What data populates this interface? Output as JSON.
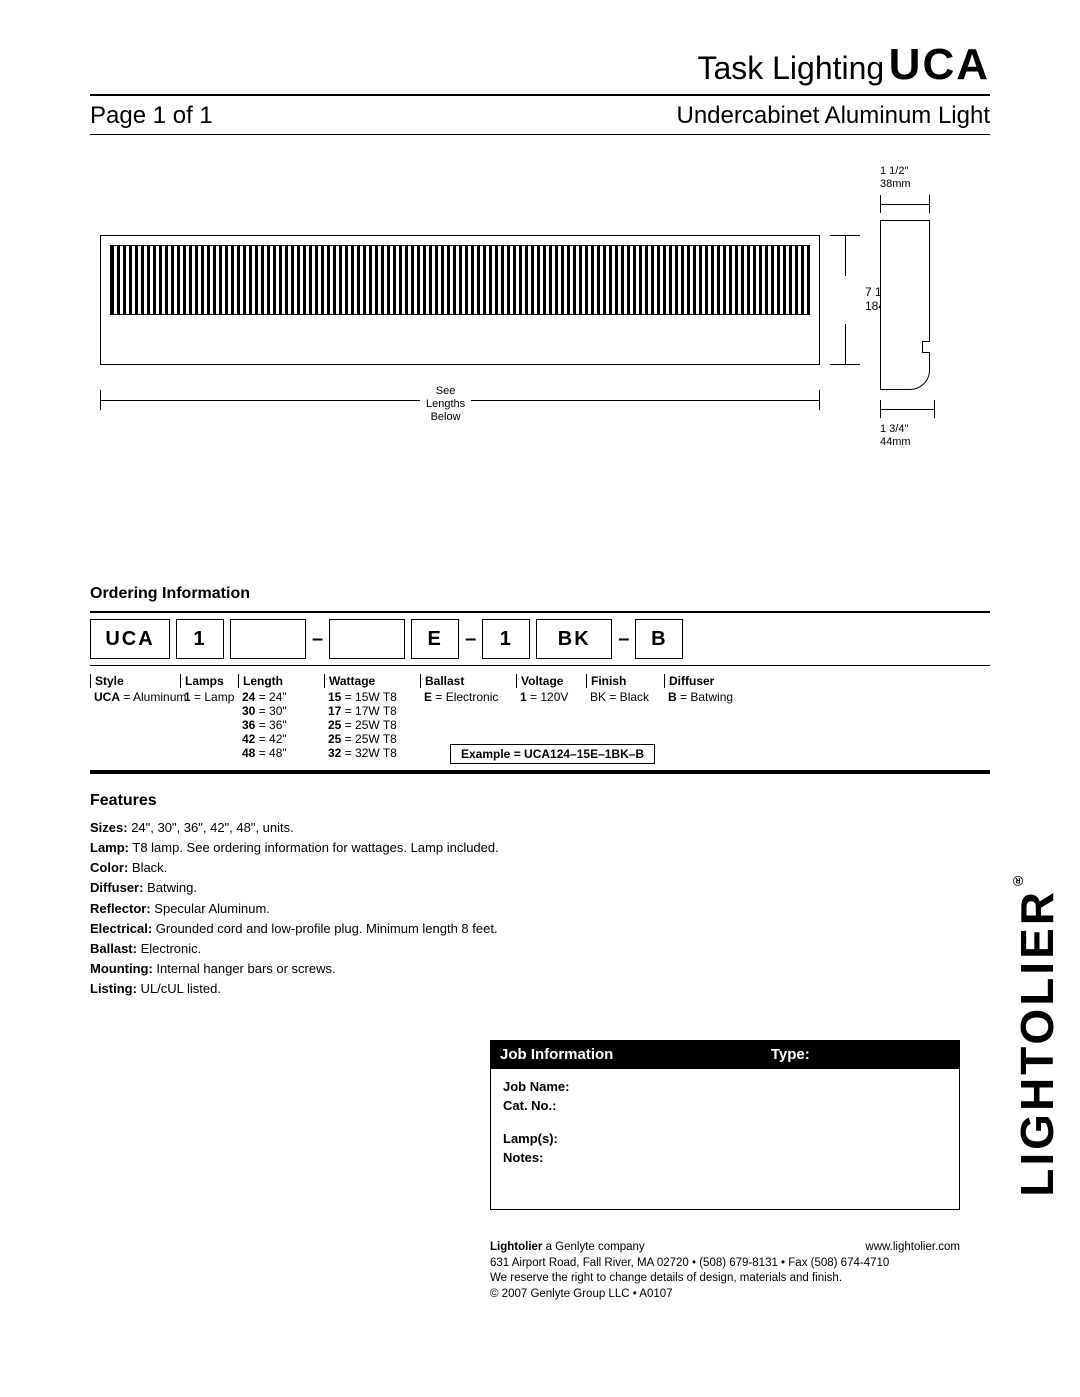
{
  "header": {
    "task": "Task Lighting",
    "code": "UCA",
    "page": "Page 1 of 1",
    "subtitle": "Undercabinet Aluminum Light"
  },
  "diagram": {
    "height_in": "7 1/4\"",
    "height_mm": "184mm",
    "length_l1": "See",
    "length_l2": "Lengths",
    "length_l3": "Below",
    "side_top_in": "1 1/2\"",
    "side_top_mm": "38mm",
    "side_bot_in": "1 3/4\"",
    "side_bot_mm": "44mm"
  },
  "ordering": {
    "title": "Ordering Information",
    "boxes": [
      "UCA",
      "1",
      "",
      "",
      "E",
      "1",
      "BK",
      "B"
    ],
    "cols": [
      {
        "head": "Style",
        "rows": [
          {
            "b": "UCA",
            "t": " = Aluminum"
          }
        ]
      },
      {
        "head": "Lamps",
        "rows": [
          {
            "b": "1",
            "t": " = Lamp"
          }
        ]
      },
      {
        "head": "Length",
        "rows": [
          {
            "b": "24",
            "t": " = 24\""
          },
          {
            "b": "30",
            "t": " = 30\""
          },
          {
            "b": "36",
            "t": " = 36\""
          },
          {
            "b": "42",
            "t": " = 42\""
          },
          {
            "b": "48",
            "t": " = 48\""
          }
        ]
      },
      {
        "head": "Wattage",
        "rows": [
          {
            "b": "15",
            "t": " = 15W T8"
          },
          {
            "b": "17",
            "t": " = 17W T8"
          },
          {
            "b": "25",
            "t": " = 25W T8"
          },
          {
            "b": "25",
            "t": " = 25W T8"
          },
          {
            "b": "32",
            "t": " = 32W T8"
          }
        ]
      },
      {
        "head": "Ballast",
        "rows": [
          {
            "b": "E",
            "t": " = Electronic"
          }
        ]
      },
      {
        "head": "Voltage",
        "rows": [
          {
            "b": "1",
            "t": " = 120V"
          }
        ]
      },
      {
        "head": "Finish",
        "rows": [
          {
            "b": "",
            "t": "BK = Black"
          }
        ]
      },
      {
        "head": "Diffuser",
        "rows": [
          {
            "b": "B",
            "t": " = Batwing"
          }
        ]
      }
    ],
    "example": "Example = UCA124–15E–1BK–B"
  },
  "features": {
    "title": "Features",
    "rows": [
      {
        "b": "Sizes:",
        "t": "  24\", 30\", 36\", 42\", 48\", units."
      },
      {
        "b": "Lamp:",
        "t": "  T8 lamp. See ordering information for wattages. Lamp included."
      },
      {
        "b": "Color:",
        "t": "  Black."
      },
      {
        "b": "Diffuser:",
        "t": "  Batwing."
      },
      {
        "b": "Reflector:",
        "t": "  Specular Aluminum."
      },
      {
        "b": "Electrical:",
        "t": "  Grounded cord and low-profile plug. Minimum length 8 feet."
      },
      {
        "b": "Ballast:",
        "t": "  Electronic."
      },
      {
        "b": "Mounting:",
        "t": "  Internal hanger bars or screws."
      },
      {
        "b": "Listing:",
        "t": "  UL/cUL listed."
      }
    ]
  },
  "job": {
    "head_l": "Job Information",
    "head_r": "Type:",
    "fields": [
      "Job Name:",
      "Cat. No.:",
      "Lamp(s):",
      "Notes:"
    ]
  },
  "footer": {
    "l1a": "Lightolier",
    "l1b": " a Genlyte company",
    "l1c": "www.lightolier.com",
    "l2": "631 Airport Road, Fall River, MA 02720 • (508) 679-8131 • Fax (508) 674-4710",
    "l3": "We reserve the right to change details of design, materials and finish.",
    "l4": "© 2007 Genlyte Group LLC • A0107"
  },
  "brand": "LIGHTOLIER"
}
